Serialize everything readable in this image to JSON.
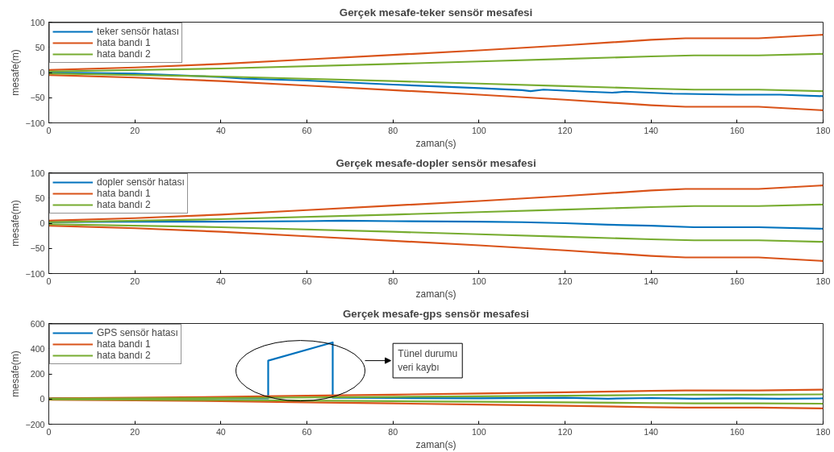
{
  "chart_data": [
    {
      "type": "line",
      "title": "Gerçek mesafe-teker sensör mesafesi",
      "xlabel": "zaman(s)",
      "ylabel": "mesafe(m)",
      "xlim": [
        0,
        180
      ],
      "ylim": [
        -100,
        100
      ],
      "xticks": [
        0,
        20,
        40,
        60,
        80,
        100,
        120,
        140,
        160,
        180
      ],
      "yticks": [
        -100,
        -50,
        0,
        50,
        100
      ],
      "grid": false,
      "legend": "top left",
      "x": [
        0,
        20,
        40,
        60,
        80,
        100,
        120,
        140,
        148,
        165,
        180
      ],
      "series": [
        {
          "name": "teker sensör hatası",
          "color": "#0072bd",
          "x": [
            0,
            20,
            40,
            45,
            60,
            80,
            100,
            110,
            112,
            115,
            125,
            131,
            134,
            145,
            160,
            170,
            180
          ],
          "values": [
            0,
            -2,
            -9,
            -12,
            -16,
            -24,
            -31,
            -35,
            -37,
            -34,
            -38,
            -40,
            -38,
            -42,
            -44,
            -44,
            -47
          ]
        },
        {
          "name": "hata bandı 1",
          "color": "#d95319",
          "values": [
            5,
            10,
            17,
            26,
            35,
            44,
            54,
            65,
            68,
            68,
            75
          ]
        },
        {
          "color": "#d95319",
          "values": [
            -5,
            -10,
            -17,
            -26,
            -35,
            -44,
            -54,
            -65,
            -68,
            -68,
            -75
          ]
        },
        {
          "name": "hata bandı 2",
          "color": "#77ac30",
          "x": [
            0,
            40,
            80,
            100,
            120,
            140,
            150,
            165,
            180
          ],
          "values": [
            2,
            8,
            17,
            22,
            27,
            32,
            34,
            34,
            37
          ]
        },
        {
          "color": "#77ac30",
          "x": [
            0,
            40,
            80,
            100,
            120,
            140,
            150,
            165,
            180
          ],
          "values": [
            -2,
            -8,
            -17,
            -22,
            -27,
            -32,
            -34,
            -34,
            -37
          ]
        }
      ]
    },
    {
      "type": "line",
      "title": "Gerçek mesafe-dopler sensör mesafesi",
      "xlabel": "zaman(s)",
      "ylabel": "mesafe(m)",
      "xlim": [
        0,
        180
      ],
      "ylim": [
        -100,
        100
      ],
      "xticks": [
        0,
        20,
        40,
        60,
        80,
        100,
        120,
        140,
        160,
        180
      ],
      "yticks": [
        -100,
        -50,
        0,
        50,
        100
      ],
      "grid": false,
      "legend": "top left",
      "x": [
        0,
        20,
        40,
        60,
        80,
        100,
        120,
        140,
        148,
        165,
        180
      ],
      "series": [
        {
          "name": "dopler sensör hatası",
          "color": "#0072bd",
          "x": [
            0,
            20,
            40,
            60,
            68,
            80,
            100,
            110,
            120,
            130,
            140,
            150,
            165,
            180
          ],
          "values": [
            2,
            3,
            3,
            4,
            5,
            4,
            3,
            2,
            0,
            -3,
            -5,
            -8,
            -8,
            -11
          ]
        },
        {
          "name": "hata bandı 1",
          "color": "#d95319",
          "values": [
            5,
            10,
            17,
            26,
            35,
            44,
            54,
            65,
            68,
            68,
            75
          ]
        },
        {
          "color": "#d95319",
          "values": [
            -5,
            -10,
            -17,
            -26,
            -35,
            -44,
            -54,
            -65,
            -68,
            -68,
            -75
          ]
        },
        {
          "name": "hata bandı 2",
          "color": "#77ac30",
          "x": [
            0,
            40,
            80,
            100,
            120,
            140,
            150,
            165,
            180
          ],
          "values": [
            2,
            8,
            17,
            22,
            27,
            32,
            34,
            34,
            37
          ]
        },
        {
          "color": "#77ac30",
          "x": [
            0,
            40,
            80,
            100,
            120,
            140,
            150,
            165,
            180
          ],
          "values": [
            -2,
            -8,
            -17,
            -22,
            -27,
            -32,
            -34,
            -34,
            -37
          ]
        }
      ]
    },
    {
      "type": "line",
      "title": "Gerçek mesafe-gps sensör mesafesi",
      "xlabel": "zaman(s)",
      "ylabel": "mesafe(m)",
      "xlim": [
        0,
        180
      ],
      "ylim": [
        -200,
        600
      ],
      "xticks": [
        0,
        20,
        40,
        60,
        80,
        100,
        120,
        140,
        160,
        180
      ],
      "yticks": [
        -200,
        0,
        200,
        400,
        600
      ],
      "grid": false,
      "legend": "top left",
      "annotations": [
        "Tünel durumu\nveri kaybı"
      ],
      "x": [
        0,
        20,
        40,
        60,
        80,
        100,
        120,
        140,
        148,
        165,
        180
      ],
      "series": [
        {
          "name": "GPS sensör hatası",
          "color": "#0072bd",
          "x": [
            0,
            51,
            51,
            66,
            66,
            80,
            100,
            120,
            130,
            140,
            150,
            160,
            170,
            180
          ],
          "values": [
            5,
            5,
            305,
            450,
            10,
            8,
            5,
            10,
            3,
            8,
            2,
            6,
            3,
            5
          ]
        },
        {
          "name": "hata bandı 1",
          "color": "#d95319",
          "values": [
            5,
            10,
            17,
            26,
            35,
            44,
            54,
            65,
            68,
            68,
            75
          ]
        },
        {
          "color": "#d95319",
          "values": [
            -5,
            -10,
            -17,
            -26,
            -35,
            -44,
            -54,
            -65,
            -68,
            -68,
            -75
          ]
        },
        {
          "name": "hata bandı 2",
          "color": "#77ac30",
          "x": [
            0,
            40,
            80,
            100,
            120,
            140,
            150,
            165,
            180
          ],
          "values": [
            2,
            8,
            17,
            22,
            27,
            32,
            34,
            34,
            37
          ]
        },
        {
          "color": "#77ac30",
          "x": [
            0,
            40,
            80,
            100,
            120,
            140,
            150,
            165,
            180
          ],
          "values": [
            -2,
            -8,
            -17,
            -22,
            -27,
            -32,
            -34,
            -34,
            -37
          ]
        }
      ]
    }
  ]
}
